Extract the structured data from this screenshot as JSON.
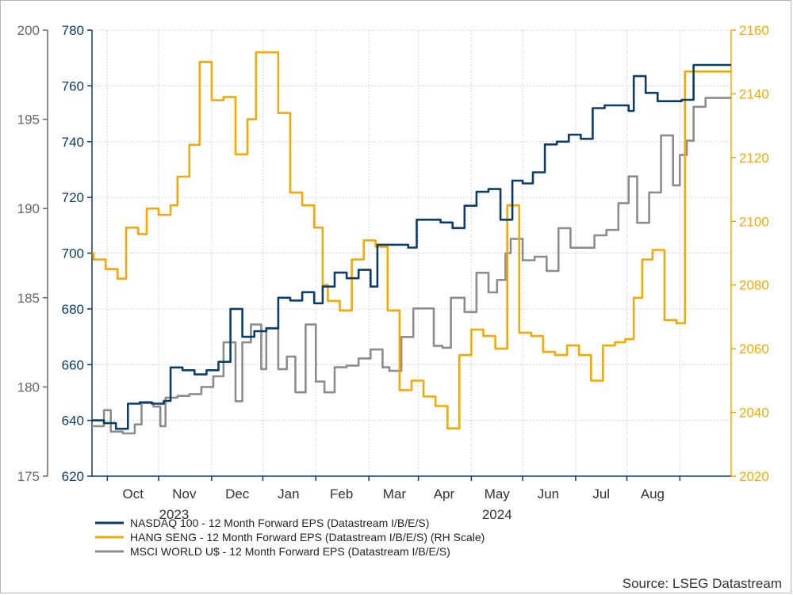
{
  "chart_data": {
    "type": "line",
    "source": "Source: LSEG Datastream",
    "x_domain": [
      "2023-08-23",
      "2024-08-31"
    ],
    "month_ticks": [
      {
        "date": "2023-09-01",
        "label": "Oct",
        "label_date": "2023-09-16"
      },
      {
        "date": "2023-10-01",
        "label": "Nov",
        "label_date": "2023-10-16"
      },
      {
        "date": "2023-11-01",
        "label": "Dec",
        "label_date": "2023-11-16"
      },
      {
        "date": "2023-12-01",
        "label": "Jan",
        "label_date": "2023-12-16"
      },
      {
        "date": "2024-01-01",
        "label": "Feb",
        "label_date": "2024-01-16"
      },
      {
        "date": "2024-02-01",
        "label": "Mar",
        "label_date": "2024-02-16"
      },
      {
        "date": "2024-03-01",
        "label": "Apr",
        "label_date": "2024-03-16"
      },
      {
        "date": "2024-04-01",
        "label": "May",
        "label_date": "2024-04-16"
      },
      {
        "date": "2024-05-01",
        "label": "Jun",
        "label_date": "2024-05-16"
      },
      {
        "date": "2024-06-01",
        "label": "Jul",
        "label_date": "2024-06-16"
      },
      {
        "date": "2024-07-01",
        "label": "Aug",
        "label_date": "2024-07-16"
      },
      {
        "date": "2024-08-01",
        "label": "",
        "label_date": "2024-08-16"
      }
    ],
    "year_labels": [
      {
        "label": "2023",
        "date": "2023-10-10"
      },
      {
        "label": "2024",
        "date": "2024-04-16"
      }
    ],
    "axes": {
      "left_outer": {
        "min": 175,
        "max": 200,
        "ticks": [
          175,
          180,
          185,
          190,
          195,
          200
        ],
        "color": "#666666"
      },
      "left_inner": {
        "min": 620,
        "max": 780,
        "ticks": [
          620,
          640,
          660,
          680,
          700,
          720,
          740,
          760,
          780
        ],
        "color": "#0b3d6b"
      },
      "right": {
        "min": 2020,
        "max": 2160,
        "ticks": [
          2020,
          2040,
          2060,
          2080,
          2100,
          2120,
          2140,
          2160
        ],
        "color": "#f5a800"
      }
    },
    "grid": true,
    "legend_position": "bottom-left",
    "series": [
      {
        "name": "NASDAQ 100 - 12 Month Forward EPS (Datastream I/B/E/S)",
        "axis": "left_inner",
        "color": "#0b3d6b",
        "step": true,
        "points": [
          [
            "2023-08-23",
            640
          ],
          [
            "2023-08-30",
            639
          ],
          [
            "2023-09-06",
            637
          ],
          [
            "2023-09-13",
            646
          ],
          [
            "2023-09-20",
            646.5
          ],
          [
            "2023-09-27",
            646
          ],
          [
            "2023-10-04",
            647
          ],
          [
            "2023-10-08",
            659
          ],
          [
            "2023-10-15",
            658
          ],
          [
            "2023-10-22",
            656.5
          ],
          [
            "2023-10-29",
            658
          ],
          [
            "2023-11-05",
            661
          ],
          [
            "2023-11-12",
            680
          ],
          [
            "2023-11-19",
            670
          ],
          [
            "2023-11-26",
            672
          ],
          [
            "2023-12-03",
            673
          ],
          [
            "2023-12-10",
            684
          ],
          [
            "2023-12-17",
            683
          ],
          [
            "2023-12-24",
            686
          ],
          [
            "2023-12-31",
            682
          ],
          [
            "2024-01-05",
            688
          ],
          [
            "2024-01-12",
            693
          ],
          [
            "2024-01-19",
            691
          ],
          [
            "2024-01-26",
            694
          ],
          [
            "2024-02-02",
            688
          ],
          [
            "2024-02-06",
            703
          ],
          [
            "2024-02-13",
            703
          ],
          [
            "2024-02-20",
            703
          ],
          [
            "2024-02-24",
            702
          ],
          [
            "2024-02-29",
            712
          ],
          [
            "2024-03-07",
            712
          ],
          [
            "2024-03-14",
            711
          ],
          [
            "2024-03-21",
            709
          ],
          [
            "2024-03-28",
            717
          ],
          [
            "2024-04-04",
            722
          ],
          [
            "2024-04-11",
            723
          ],
          [
            "2024-04-18",
            712
          ],
          [
            "2024-04-25",
            726
          ],
          [
            "2024-05-01",
            725
          ],
          [
            "2024-05-07",
            729
          ],
          [
            "2024-05-14",
            739
          ],
          [
            "2024-05-21",
            740
          ],
          [
            "2024-05-28",
            742.5
          ],
          [
            "2024-06-04",
            741
          ],
          [
            "2024-06-11",
            752
          ],
          [
            "2024-06-18",
            753
          ],
          [
            "2024-06-25",
            753
          ],
          [
            "2024-07-02",
            751
          ],
          [
            "2024-07-05",
            763.5
          ],
          [
            "2024-07-12",
            757.5
          ],
          [
            "2024-07-19",
            754.5
          ],
          [
            "2024-07-26",
            754.5
          ],
          [
            "2024-08-02",
            755
          ],
          [
            "2024-08-09",
            767.5
          ],
          [
            "2024-08-16",
            767.5
          ],
          [
            "2024-08-31",
            767.5
          ]
        ]
      },
      {
        "name": "HANG SENG - 12 Month Forward EPS (Datastream I/B/E/S) (RH Scale)",
        "axis": "right",
        "color": "#f5a800",
        "step": true,
        "points": [
          [
            "2023-08-23",
            2090
          ],
          [
            "2023-08-24",
            2088
          ],
          [
            "2023-08-31",
            2085
          ],
          [
            "2023-09-07",
            2082
          ],
          [
            "2023-09-12",
            2098
          ],
          [
            "2023-09-19",
            2096
          ],
          [
            "2023-09-24",
            2104
          ],
          [
            "2023-10-01",
            2102
          ],
          [
            "2023-10-08",
            2105
          ],
          [
            "2023-10-12",
            2114
          ],
          [
            "2023-10-19",
            2124
          ],
          [
            "2023-10-25",
            2150
          ],
          [
            "2023-11-01",
            2138
          ],
          [
            "2023-11-08",
            2139
          ],
          [
            "2023-11-15",
            2121
          ],
          [
            "2023-11-22",
            2132
          ],
          [
            "2023-11-27",
            2153
          ],
          [
            "2023-12-04",
            2153
          ],
          [
            "2023-12-10",
            2134
          ],
          [
            "2023-12-17",
            2109
          ],
          [
            "2023-12-24",
            2105
          ],
          [
            "2023-12-31",
            2098
          ],
          [
            "2024-01-05",
            2080
          ],
          [
            "2024-01-08",
            2075
          ],
          [
            "2024-01-15",
            2072
          ],
          [
            "2024-01-22",
            2088
          ],
          [
            "2024-01-29",
            2094
          ],
          [
            "2024-02-05",
            2092
          ],
          [
            "2024-02-12",
            2072
          ],
          [
            "2024-02-19",
            2047
          ],
          [
            "2024-02-26",
            2050
          ],
          [
            "2024-03-04",
            2045
          ],
          [
            "2024-03-11",
            2042
          ],
          [
            "2024-03-18",
            2035
          ],
          [
            "2024-03-25",
            2058
          ],
          [
            "2024-04-01",
            2066
          ],
          [
            "2024-04-08",
            2064
          ],
          [
            "2024-04-15",
            2060
          ],
          [
            "2024-04-22",
            2105
          ],
          [
            "2024-04-29",
            2065
          ],
          [
            "2024-05-06",
            2064
          ],
          [
            "2024-05-13",
            2059
          ],
          [
            "2024-05-20",
            2058
          ],
          [
            "2024-05-27",
            2061
          ],
          [
            "2024-06-03",
            2058
          ],
          [
            "2024-06-10",
            2050
          ],
          [
            "2024-06-17",
            2061
          ],
          [
            "2024-06-24",
            2062
          ],
          [
            "2024-06-30",
            2063
          ],
          [
            "2024-07-05",
            2076
          ],
          [
            "2024-07-10",
            2088
          ],
          [
            "2024-07-16",
            2091
          ],
          [
            "2024-07-23",
            2069
          ],
          [
            "2024-07-30",
            2068
          ],
          [
            "2024-08-04",
            2147
          ],
          [
            "2024-08-31",
            2147
          ]
        ]
      },
      {
        "name": "MSCI WORLD U$ - 12 Month Forward EPS (Datastream I/B/E/S)",
        "axis": "left_outer",
        "color": "#8c8c8c",
        "step": true,
        "points": [
          [
            "2023-08-23",
            177.8
          ],
          [
            "2023-08-30",
            178.7
          ],
          [
            "2023-09-03",
            177.5
          ],
          [
            "2023-09-10",
            177.4
          ],
          [
            "2023-09-17",
            177.9
          ],
          [
            "2023-09-21",
            179.1
          ],
          [
            "2023-09-28",
            178.9
          ],
          [
            "2023-10-02",
            177.8
          ],
          [
            "2023-10-05",
            179.4
          ],
          [
            "2023-10-12",
            179.5
          ],
          [
            "2023-10-19",
            179.6
          ],
          [
            "2023-10-26",
            180.0
          ],
          [
            "2023-11-02",
            180.6
          ],
          [
            "2023-11-08",
            182.5
          ],
          [
            "2023-11-15",
            179.2
          ],
          [
            "2023-11-19",
            182.5
          ],
          [
            "2023-11-24",
            183.5
          ],
          [
            "2023-11-30",
            181.0
          ],
          [
            "2023-12-03",
            183.3
          ],
          [
            "2023-12-10",
            181.0
          ],
          [
            "2023-12-15",
            181.7
          ],
          [
            "2023-12-20",
            179.7
          ],
          [
            "2023-12-26",
            183.5
          ],
          [
            "2024-01-01",
            180.3
          ],
          [
            "2024-01-06",
            179.7
          ],
          [
            "2024-01-12",
            181.1
          ],
          [
            "2024-01-19",
            181.2
          ],
          [
            "2024-01-26",
            181.6
          ],
          [
            "2024-02-02",
            182.1
          ],
          [
            "2024-02-09",
            181.1
          ],
          [
            "2024-02-13",
            180.9
          ],
          [
            "2024-02-20",
            182.8
          ],
          [
            "2024-02-27",
            184.4
          ],
          [
            "2024-03-03",
            184.4
          ],
          [
            "2024-03-10",
            182.3
          ],
          [
            "2024-03-15",
            182.2
          ],
          [
            "2024-03-20",
            185.0
          ],
          [
            "2024-03-28",
            184.2
          ],
          [
            "2024-04-04",
            186.4
          ],
          [
            "2024-04-11",
            185.3
          ],
          [
            "2024-04-16",
            186.0
          ],
          [
            "2024-04-21",
            187.5
          ],
          [
            "2024-04-24",
            188.3
          ],
          [
            "2024-05-01",
            187.1
          ],
          [
            "2024-05-08",
            187.3
          ],
          [
            "2024-05-15",
            186.5
          ],
          [
            "2024-05-22",
            188.9
          ],
          [
            "2024-05-29",
            187.8
          ],
          [
            "2024-06-05",
            187.8
          ],
          [
            "2024-06-12",
            188.5
          ],
          [
            "2024-06-19",
            188.8
          ],
          [
            "2024-06-26",
            190.3
          ],
          [
            "2024-07-02",
            191.8
          ],
          [
            "2024-07-07",
            189.2
          ],
          [
            "2024-07-14",
            190.9
          ],
          [
            "2024-07-21",
            194.1
          ],
          [
            "2024-07-28",
            191.3
          ],
          [
            "2024-08-01",
            193.0
          ],
          [
            "2024-08-05",
            193.8
          ],
          [
            "2024-08-09",
            195.7
          ],
          [
            "2024-08-16",
            196.2
          ],
          [
            "2024-08-31",
            196.2
          ]
        ]
      }
    ]
  }
}
